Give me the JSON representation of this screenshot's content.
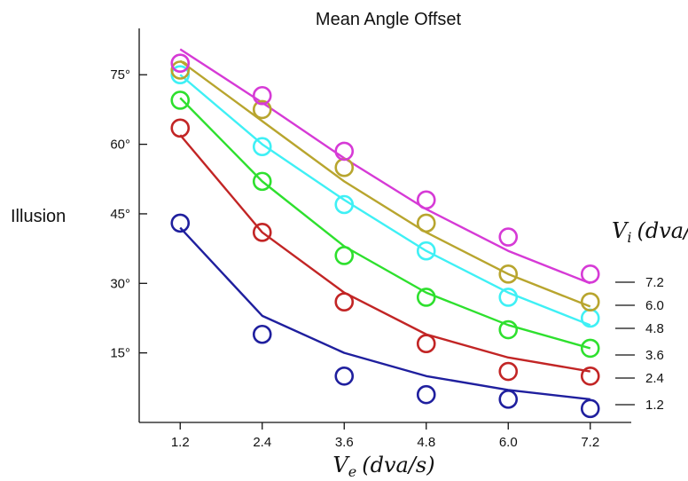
{
  "chart_data": {
    "type": "line",
    "title": "Mean Angle Offset",
    "ylabel": "Illusion",
    "xlabel": {
      "symbol": "V",
      "subscript": "e",
      "units": "(dva/s)"
    },
    "x": [
      1.2,
      2.4,
      3.6,
      4.8,
      6.0,
      7.2
    ],
    "x_tick_labels": [
      "1.2",
      "2.4",
      "3.6",
      "4.8",
      "6.0",
      "7.2"
    ],
    "xlim": [
      0.6,
      7.8
    ],
    "ylim": [
      0,
      85
    ],
    "y_ticks": [
      15,
      30,
      45,
      60,
      75
    ],
    "y_tick_labels": [
      "15°",
      "30°",
      "45°",
      "60°",
      "75°"
    ],
    "legend": {
      "title": {
        "symbol": "V",
        "subscript": "i",
        "units": "(dva/s)"
      },
      "placement": "right"
    },
    "grid": false,
    "series": [
      {
        "name": "1.2",
        "color": "#1f1f9e",
        "observed": [
          43,
          19,
          10,
          6,
          5,
          3
        ],
        "fit": [
          42,
          23,
          15,
          10,
          7,
          5
        ]
      },
      {
        "name": "2.4",
        "color": "#c22525",
        "observed": [
          63.5,
          41,
          26,
          17,
          11,
          10
        ],
        "fit": [
          62,
          41,
          28,
          19,
          14,
          11
        ]
      },
      {
        "name": "3.6",
        "color": "#2ee02e",
        "observed": [
          69.5,
          52,
          36,
          27,
          20,
          16
        ],
        "fit": [
          70,
          52,
          38,
          28,
          21,
          16
        ]
      },
      {
        "name": "4.8",
        "color": "#3ff0f5",
        "observed": [
          75,
          59.5,
          47,
          37,
          27,
          22.5
        ],
        "fit": [
          75,
          60,
          48,
          37,
          28,
          21
        ]
      },
      {
        "name": "6.0",
        "color": "#b8a52e",
        "observed": [
          76,
          67.5,
          55,
          43,
          32,
          26
        ],
        "fit": [
          78,
          65,
          52,
          41,
          32,
          25
        ]
      },
      {
        "name": "7.2",
        "color": "#d63ad6",
        "observed": [
          77.5,
          70.5,
          58.5,
          48,
          40,
          32
        ],
        "fit": [
          80.5,
          69,
          57,
          46,
          37,
          30
        ]
      }
    ]
  }
}
